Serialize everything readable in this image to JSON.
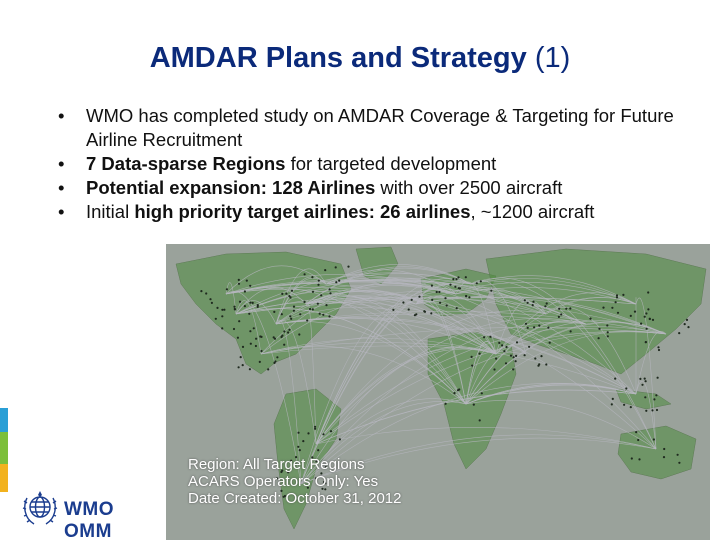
{
  "title": {
    "main": "AMDAR Plans and Strategy",
    "suffix": "(1)"
  },
  "bullets": [
    {
      "segments": [
        {
          "text": "WMO has completed study on AMDAR Coverage & Targeting for Future Airline Recruitment",
          "bold": false
        }
      ]
    },
    {
      "segments": [
        {
          "text": "7 Data-sparse Regions",
          "bold": true
        },
        {
          "text": " for targeted development",
          "bold": false
        }
      ]
    },
    {
      "segments": [
        {
          "text": "Potential expansion: 128 Airlines",
          "bold": true
        },
        {
          "text": " with over 2500 aircraft",
          "bold": false
        }
      ]
    },
    {
      "segments": [
        {
          "text": "Initial ",
          "bold": false
        },
        {
          "text": "high priority target airlines: 26 airlines",
          "bold": true
        },
        {
          "text": ", ~1200 aircraft",
          "bold": false
        }
      ]
    }
  ],
  "map": {
    "caption": {
      "region": "Region: All Target Regions",
      "operators": "ACARS Operators Only: Yes",
      "date": "Date Created: October 31, 2012"
    },
    "land_color": "#4c8a3c",
    "ocean_color": "#9aa29b"
  },
  "logo": {
    "text": "WMO OMM",
    "icon": "wmo-emblem-icon",
    "color": "#1b3d8f"
  },
  "side_bar_colors": [
    "#2a9fd6",
    "#7cbf3a",
    "#f2b21e"
  ]
}
